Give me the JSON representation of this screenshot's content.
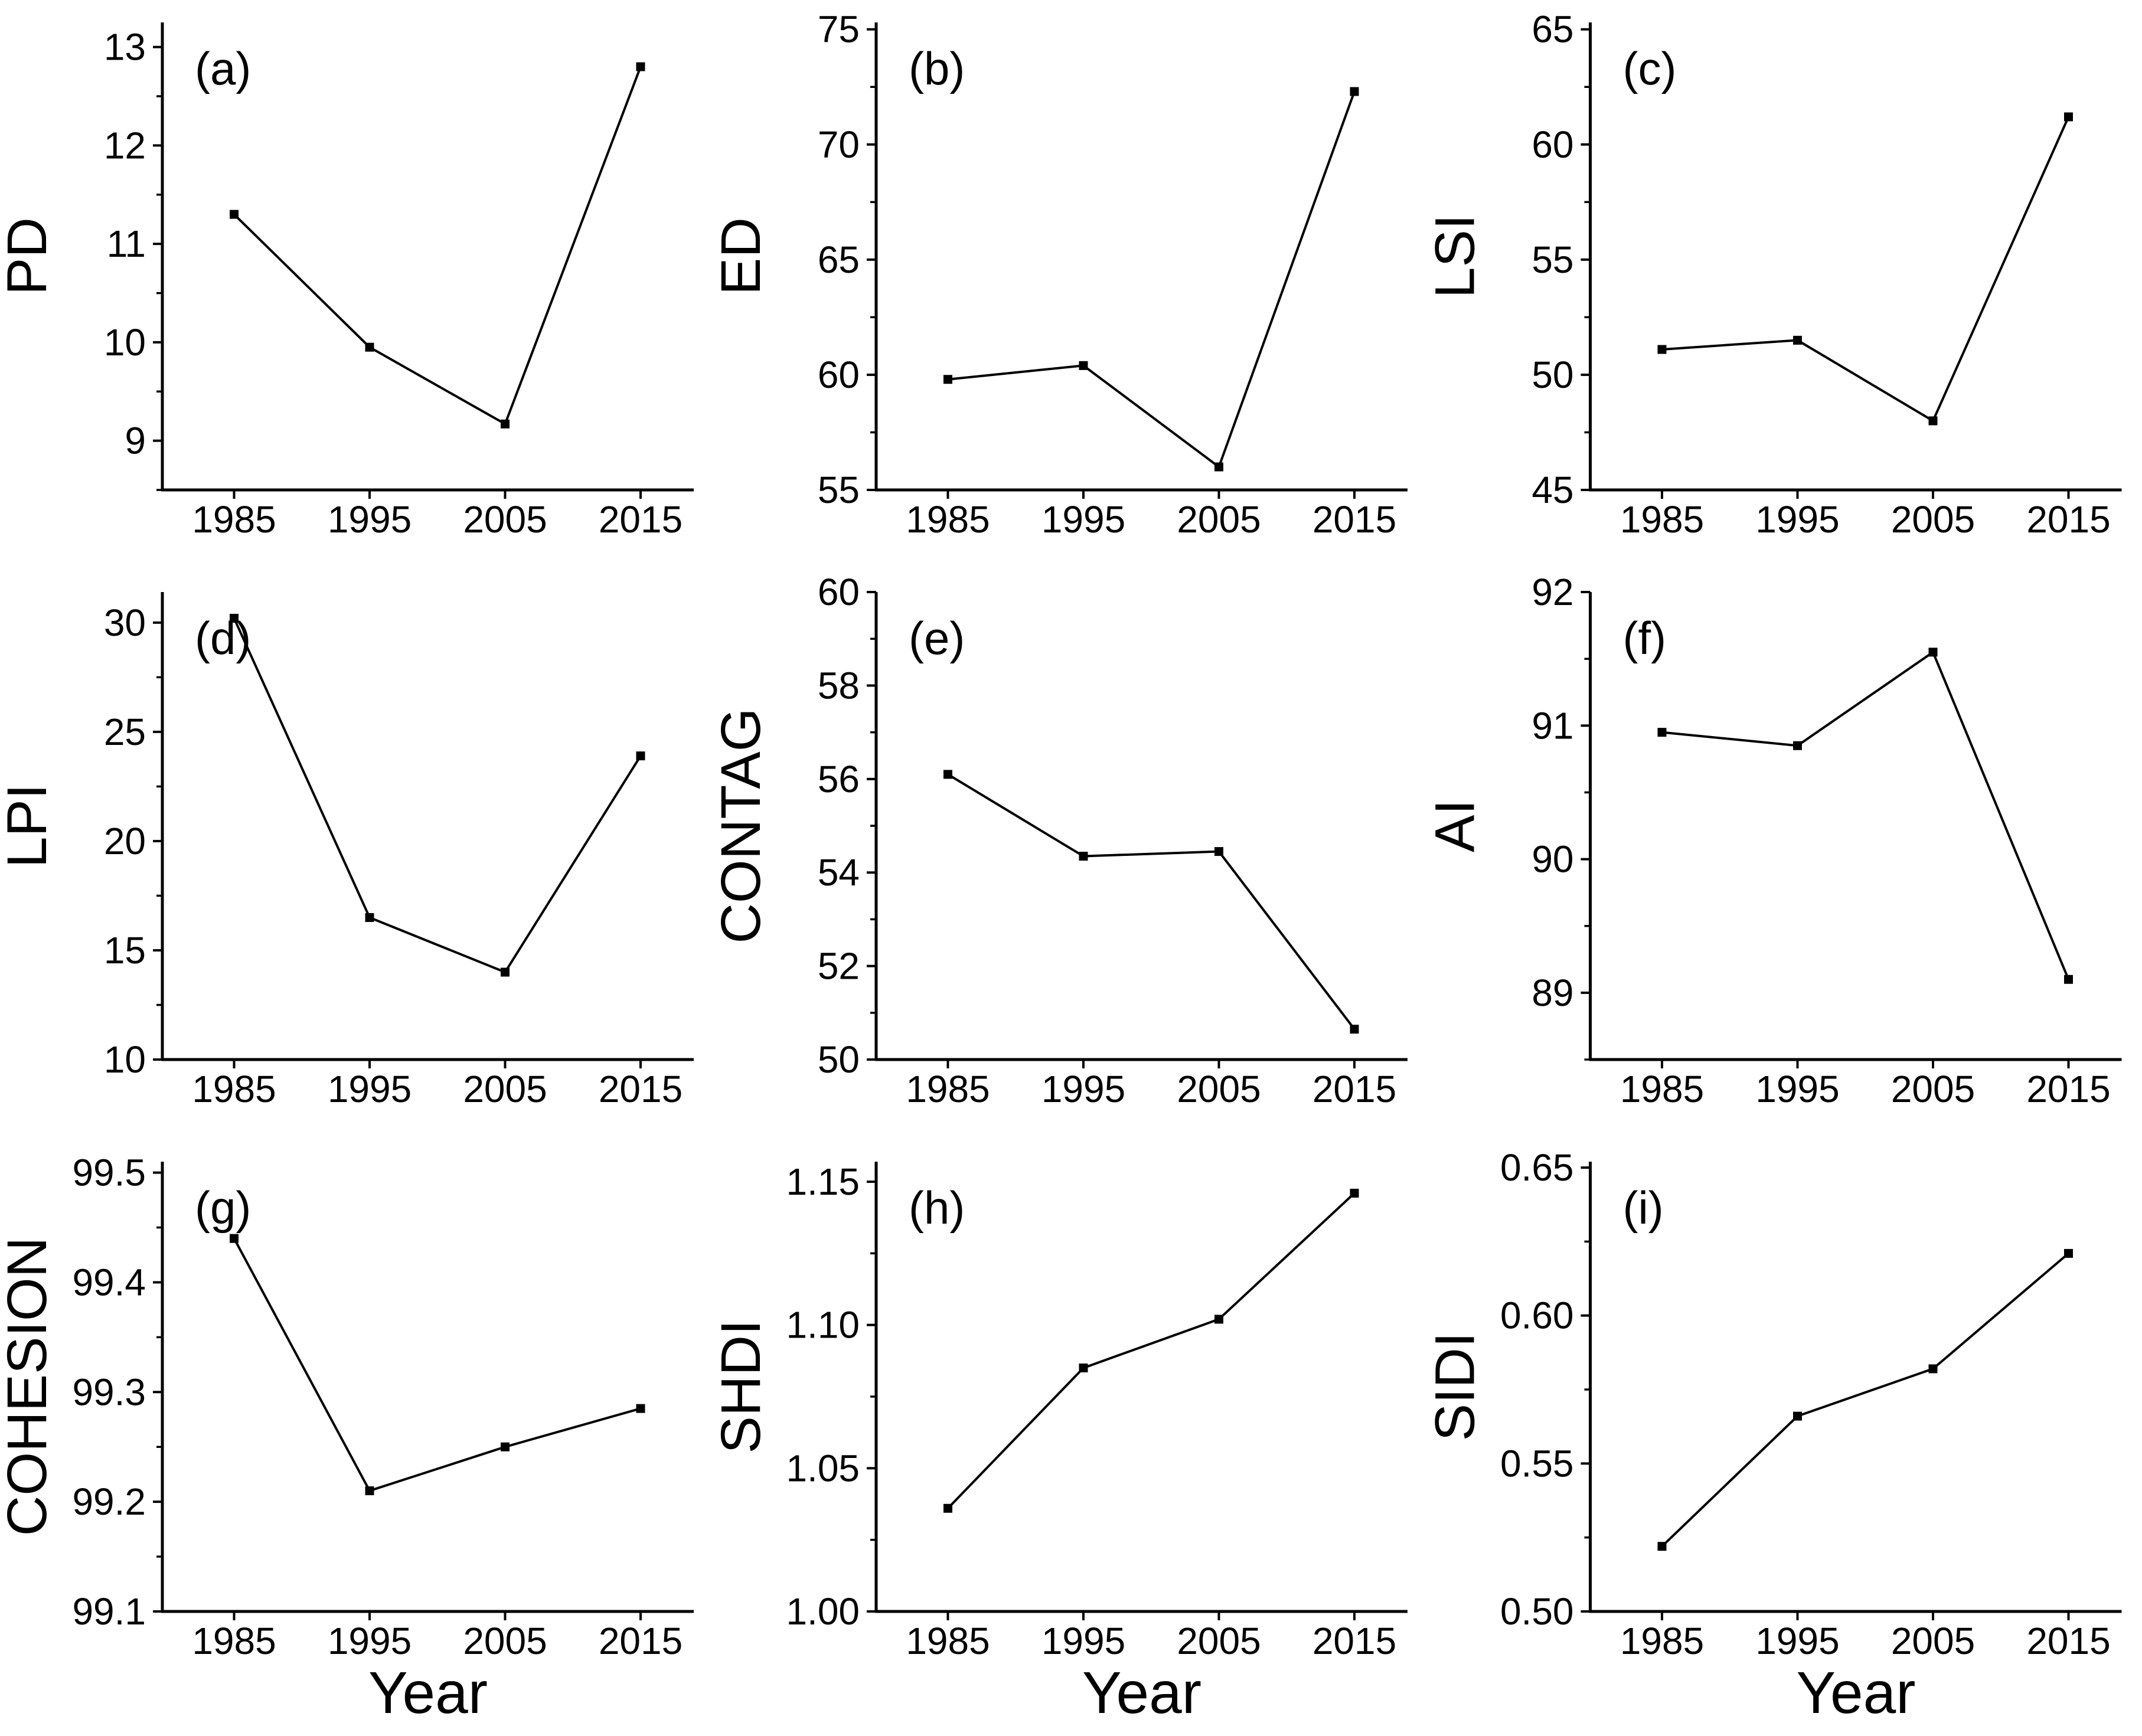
{
  "figure": {
    "background": "#ffffff",
    "text_color": "#000000",
    "line_color": "#000000"
  },
  "chart_data": {
    "type": "line",
    "x": [
      1985,
      1995,
      2005,
      2015
    ],
    "xtick_labels": [
      "1985",
      "1995",
      "2005",
      "2015"
    ],
    "xlabel": "Year",
    "marker": "filled-square",
    "series_color": "#000000",
    "grid": false,
    "legend": "none",
    "panels": [
      {
        "panel_label": "(a)",
        "ylabel": "PD",
        "values": [
          11.3,
          9.95,
          9.17,
          12.8
        ],
        "ylim": [
          8.5,
          13.25
        ],
        "yticks": [
          9,
          10,
          11,
          12,
          13
        ],
        "ytick_labels": [
          "9",
          "10",
          "11",
          "12",
          "13"
        ],
        "minor_tick_step": 0.5,
        "show_xlabel": false
      },
      {
        "panel_label": "(b)",
        "ylabel": "ED",
        "values": [
          59.8,
          60.4,
          56.0,
          72.3
        ],
        "ylim": [
          55,
          75.3
        ],
        "yticks": [
          55,
          60,
          65,
          70,
          75
        ],
        "ytick_labels": [
          "55",
          "60",
          "65",
          "70",
          "75"
        ],
        "minor_tick_step": 2.5,
        "show_xlabel": false
      },
      {
        "panel_label": "(c)",
        "ylabel": "LSI",
        "values": [
          51.1,
          51.5,
          48.0,
          61.2
        ],
        "ylim": [
          45,
          65.3
        ],
        "yticks": [
          45,
          50,
          55,
          60,
          65
        ],
        "ytick_labels": [
          "45",
          "50",
          "55",
          "60",
          "65"
        ],
        "minor_tick_step": 2.5,
        "show_xlabel": false
      },
      {
        "panel_label": "(d)",
        "ylabel": "LPI",
        "values": [
          30.2,
          16.5,
          14.0,
          23.9
        ],
        "ylim": [
          10,
          31.4
        ],
        "yticks": [
          10,
          15,
          20,
          25,
          30
        ],
        "ytick_labels": [
          "10",
          "15",
          "20",
          "25",
          "30"
        ],
        "minor_tick_step": 2.5,
        "show_xlabel": false
      },
      {
        "panel_label": "(e)",
        "ylabel": "CONTAG",
        "values": [
          56.1,
          54.35,
          54.45,
          50.65
        ],
        "ylim": [
          50,
          60
        ],
        "yticks": [
          50,
          52,
          54,
          56,
          58,
          60
        ],
        "ytick_labels": [
          "50",
          "52",
          "54",
          "56",
          "58",
          "60"
        ],
        "minor_tick_step": 1,
        "show_xlabel": false
      },
      {
        "panel_label": "(f)",
        "ylabel": "AI",
        "values": [
          90.95,
          90.85,
          91.55,
          89.1
        ],
        "ylim": [
          88.5,
          92
        ],
        "yticks": [
          89,
          90,
          91,
          92
        ],
        "ytick_labels": [
          "89",
          "90",
          "91",
          "92"
        ],
        "minor_tick_step": 0.5,
        "show_xlabel": false
      },
      {
        "panel_label": "(g)",
        "ylabel": "COHESION",
        "values": [
          99.44,
          99.21,
          99.25,
          99.285
        ],
        "ylim": [
          99.1,
          99.51
        ],
        "yticks": [
          99.1,
          99.2,
          99.3,
          99.4,
          99.5
        ],
        "ytick_labels": [
          "99.1",
          "99.2",
          "99.3",
          "99.4",
          "99.5"
        ],
        "minor_tick_step": 0.05,
        "show_xlabel": true
      },
      {
        "panel_label": "(h)",
        "ylabel": "SHDI",
        "values": [
          1.036,
          1.085,
          1.102,
          1.146
        ],
        "ylim": [
          1.0,
          1.157
        ],
        "yticks": [
          1.0,
          1.05,
          1.1,
          1.15
        ],
        "ytick_labels": [
          "1.00",
          "1.05",
          "1.10",
          "1.15"
        ],
        "minor_tick_step": 0.025,
        "show_xlabel": true
      },
      {
        "panel_label": "(i)",
        "ylabel": "SIDI",
        "values": [
          0.522,
          0.566,
          0.582,
          0.621
        ],
        "ylim": [
          0.5,
          0.652
        ],
        "yticks": [
          0.5,
          0.55,
          0.6,
          0.65
        ],
        "ytick_labels": [
          "0.50",
          "0.55",
          "0.60",
          "0.65"
        ],
        "minor_tick_step": 0.025,
        "show_xlabel": true
      }
    ]
  }
}
